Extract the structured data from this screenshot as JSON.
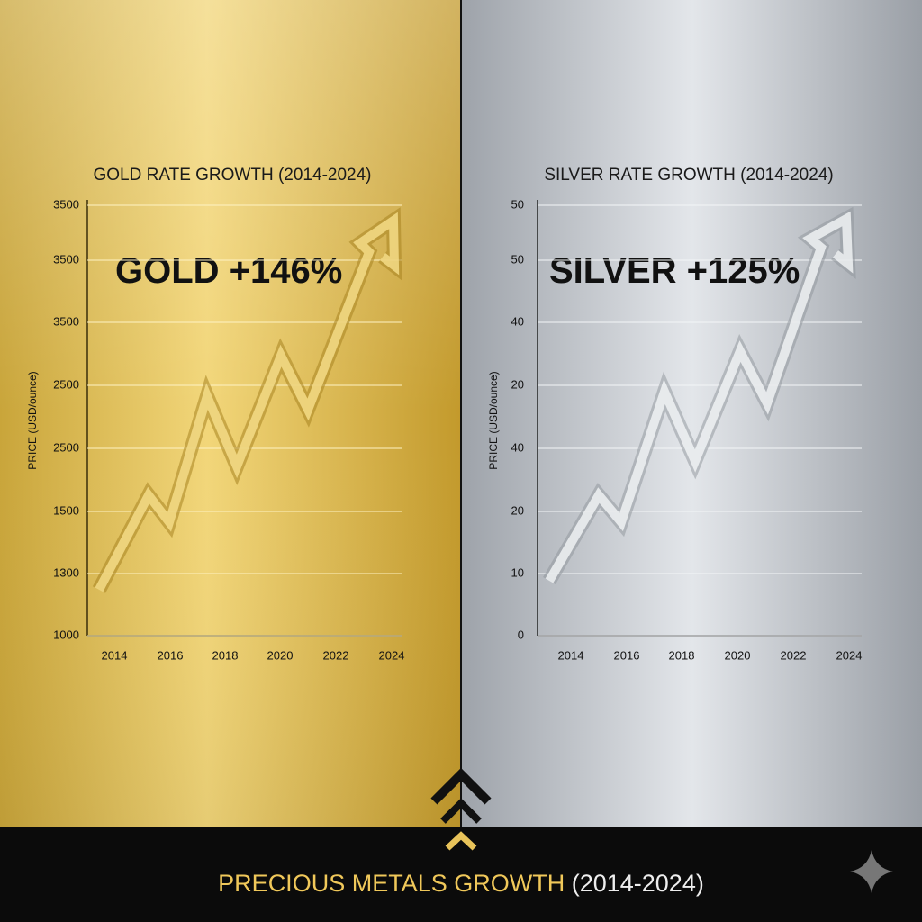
{
  "gold_panel": {
    "title": "GOLD RATE GROWTH (2014-2024)",
    "headline": "GOLD +146%",
    "y_axis_label": "PRICE (USD/ounce)",
    "y_labels": [
      3500,
      3500,
      3500,
      2500,
      2500,
      1500,
      1300,
      1000
    ],
    "x_labels": [
      2014,
      2016,
      2018,
      2020,
      2022,
      2024
    ]
  },
  "silver_panel": {
    "title": "SILVER RATE GROWTH (2014-2024)",
    "headline": "SILVER +125%",
    "y_axis_label": "PRICE (USD/ounce)",
    "y_labels": [
      50,
      50,
      40,
      20,
      40,
      20,
      10,
      0
    ],
    "x_labels": [
      2014,
      2016,
      2018,
      2020,
      2022,
      2024
    ]
  },
  "footer": {
    "title_highlight": "PRECIOUS METALS GROWTH",
    "title_rest": "(2014-2024)"
  }
}
